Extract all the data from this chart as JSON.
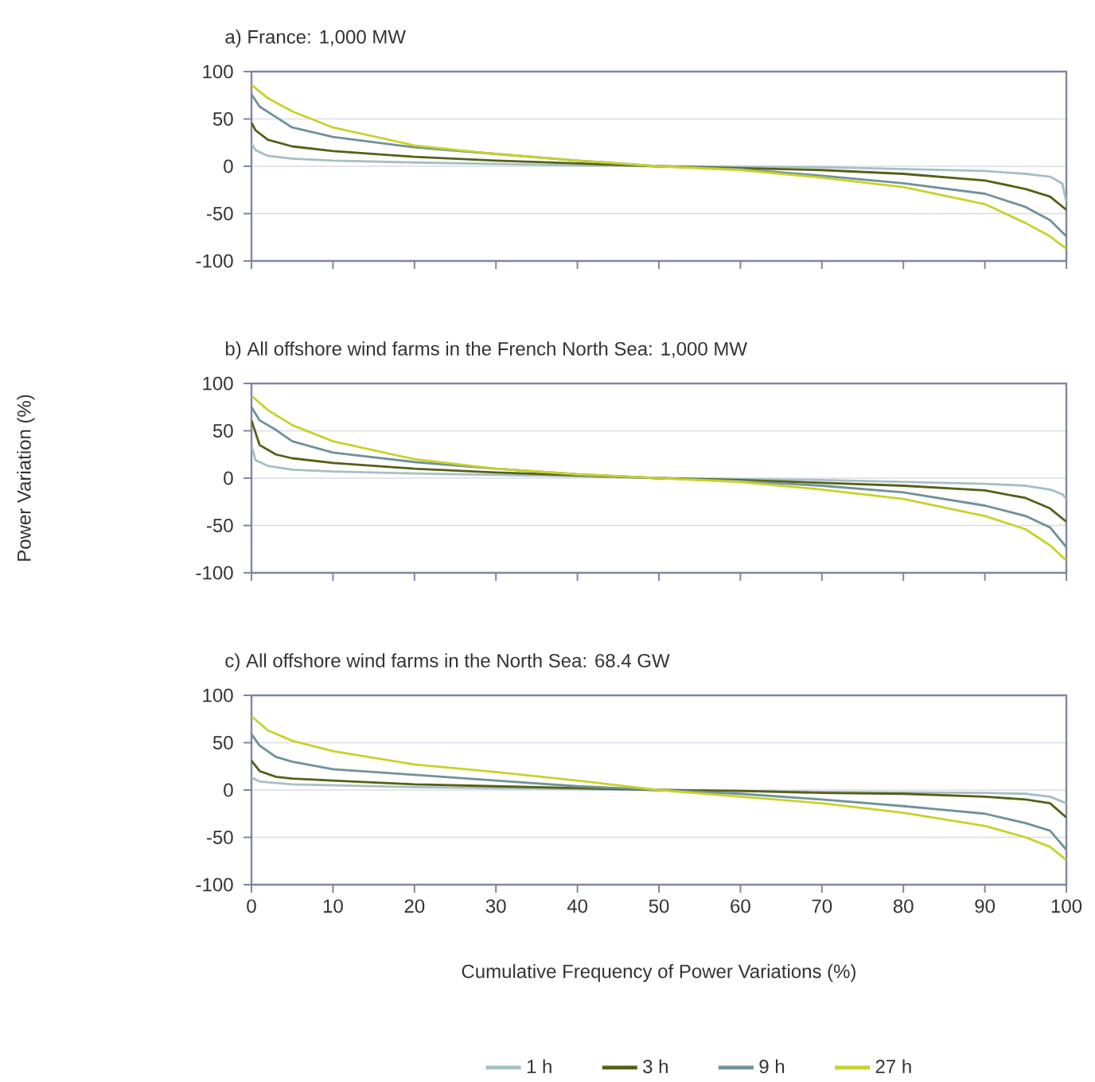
{
  "chart_data": [
    {
      "type": "line",
      "title": "a) France: 1,000 MW",
      "xlim": [
        0,
        100
      ],
      "ylim": [
        -100,
        100
      ],
      "xticks": [
        0,
        10,
        20,
        30,
        40,
        50,
        60,
        70,
        80,
        90,
        100
      ],
      "yticks": [
        -100,
        -50,
        0,
        50,
        100
      ],
      "grid": "y",
      "tick_labels": "y",
      "marker": "none",
      "line_style": "solid",
      "series": [
        {
          "color": "#a6bfc2",
          "x": [
            0,
            0.5,
            2,
            5,
            10,
            20,
            40,
            50,
            70,
            90,
            95,
            98,
            99.5,
            100
          ],
          "values": [
            24,
            17,
            11,
            8,
            6,
            4,
            1,
            0,
            -1,
            -5,
            -8,
            -11,
            -18,
            -38
          ]
        },
        {
          "color": "#556016",
          "x": [
            0,
            0.5,
            2,
            5,
            10,
            20,
            30,
            40,
            50,
            60,
            70,
            80,
            90,
            95,
            98,
            100
          ],
          "values": [
            46,
            38,
            28,
            21,
            16,
            10,
            6,
            3,
            0,
            -2,
            -4,
            -8,
            -15,
            -24,
            -32,
            -46
          ]
        },
        {
          "color": "#6f9298",
          "x": [
            0,
            1,
            3,
            5,
            10,
            20,
            30,
            40,
            50,
            60,
            70,
            80,
            90,
            95,
            98,
            100
          ],
          "values": [
            76,
            63,
            52,
            41,
            31,
            20,
            13,
            6,
            0,
            -3,
            -10,
            -18,
            -29,
            -43,
            -57,
            -74
          ]
        },
        {
          "color": "#c8d22a",
          "x": [
            0,
            2,
            5,
            10,
            20,
            30,
            40,
            50,
            60,
            70,
            80,
            90,
            95,
            98,
            100
          ],
          "values": [
            86,
            72,
            58,
            41,
            22,
            13,
            6,
            0,
            -4,
            -12,
            -22,
            -40,
            -60,
            -74,
            -87
          ]
        }
      ]
    },
    {
      "type": "line",
      "title": "b) All offshore wind farms in the French North Sea: 1,000 MW",
      "ylabel": "Power Variation (%)",
      "xlim": [
        0,
        100
      ],
      "ylim": [
        -100,
        100
      ],
      "xticks": [
        0,
        10,
        20,
        30,
        40,
        50,
        60,
        70,
        80,
        90,
        100
      ],
      "yticks": [
        -100,
        -50,
        0,
        50,
        100
      ],
      "grid": "y",
      "tick_labels": "y",
      "marker": "none",
      "line_style": "solid",
      "series": [
        {
          "color": "#a6bfc2",
          "x": [
            0,
            0.5,
            2,
            5,
            10,
            20,
            40,
            50,
            70,
            90,
            95,
            98,
            99.5,
            100
          ],
          "values": [
            35,
            19,
            13,
            9,
            7,
            5,
            2,
            0,
            -2,
            -6,
            -8,
            -12,
            -17,
            -22
          ]
        },
        {
          "color": "#556016",
          "x": [
            0,
            1,
            3,
            5,
            10,
            20,
            30,
            40,
            50,
            60,
            70,
            80,
            90,
            95,
            98,
            100
          ],
          "values": [
            61,
            35,
            25,
            21,
            16,
            10,
            6,
            3,
            0,
            -2,
            -5,
            -8,
            -13,
            -21,
            -32,
            -46
          ]
        },
        {
          "color": "#6f9298",
          "x": [
            0,
            1,
            3,
            5,
            10,
            20,
            30,
            40,
            50,
            60,
            70,
            80,
            90,
            95,
            98,
            100
          ],
          "values": [
            75,
            61,
            51,
            39,
            27,
            17,
            10,
            4,
            0,
            -3,
            -8,
            -15,
            -29,
            -40,
            -52,
            -73
          ]
        },
        {
          "color": "#c8d22a",
          "x": [
            0,
            2,
            5,
            10,
            20,
            30,
            40,
            50,
            60,
            70,
            80,
            90,
            95,
            98,
            100
          ],
          "values": [
            87,
            72,
            56,
            39,
            20,
            10,
            4,
            0,
            -4,
            -12,
            -22,
            -40,
            -54,
            -71,
            -87
          ]
        }
      ]
    },
    {
      "type": "line",
      "title": "c) All offshore wind farms in the North Sea: 68.4 GW",
      "xlabel": "Cumulative Frequency of Power Variations (%)",
      "xlim": [
        0,
        100
      ],
      "ylim": [
        -100,
        100
      ],
      "xticks": [
        0,
        10,
        20,
        30,
        40,
        50,
        60,
        70,
        80,
        90,
        100
      ],
      "yticks": [
        -100,
        -50,
        0,
        50,
        100
      ],
      "grid": "y",
      "legend": "bottom",
      "marker": "none",
      "line_style": "solid",
      "series": [
        {
          "name": "1 h",
          "color": "#a6bfc2",
          "x": [
            0,
            1,
            5,
            20,
            40,
            50,
            70,
            90,
            95,
            98,
            100
          ],
          "values": [
            13,
            9,
            6,
            3,
            1,
            0,
            -2,
            -3,
            -4,
            -7,
            -14
          ]
        },
        {
          "name": "3 h",
          "color": "#556016",
          "x": [
            0,
            1,
            3,
            5,
            10,
            20,
            30,
            40,
            50,
            60,
            70,
            80,
            90,
            95,
            98,
            100
          ],
          "values": [
            31,
            20,
            14,
            12,
            10,
            6,
            4,
            2,
            0,
            -1,
            -3,
            -4,
            -7,
            -10,
            -14,
            -29
          ]
        },
        {
          "name": "9 h",
          "color": "#6f9298",
          "x": [
            0,
            1,
            3,
            5,
            10,
            20,
            30,
            40,
            50,
            60,
            70,
            80,
            90,
            95,
            98,
            100
          ],
          "values": [
            59,
            47,
            35,
            30,
            22,
            16,
            10,
            4,
            0,
            -4,
            -10,
            -17,
            -25,
            -35,
            -43,
            -63
          ]
        },
        {
          "name": "27 h",
          "color": "#c8d22a",
          "x": [
            0,
            2,
            5,
            10,
            20,
            30,
            40,
            50,
            60,
            70,
            80,
            90,
            95,
            98,
            100
          ],
          "values": [
            78,
            63,
            52,
            41,
            27,
            19,
            10,
            0,
            -7,
            -14,
            -24,
            -38,
            -50,
            -60,
            -74
          ]
        }
      ]
    }
  ]
}
